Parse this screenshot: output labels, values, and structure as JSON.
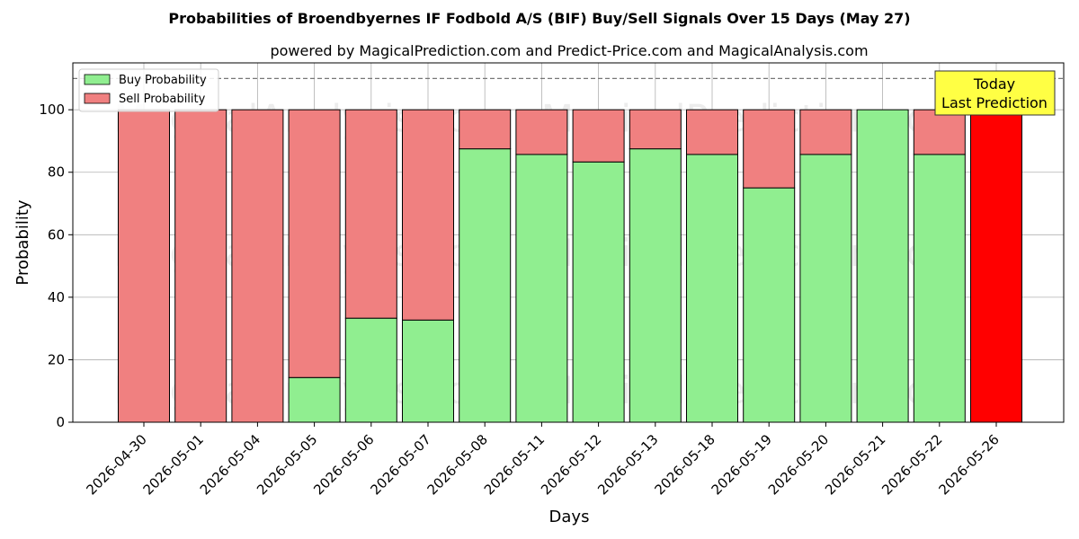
{
  "chart_data": {
    "type": "bar",
    "stacked": true,
    "title": "Probabilities of Broendbyernes IF Fodbold A/S (BIF) Buy/Sell Signals Over 15 Days (May 27)",
    "subtitle": "powered by MagicalPrediction.com and Predict-Price.com and MagicalAnalysis.com",
    "xlabel": "Days",
    "ylabel": "Probability",
    "ylim": [
      0,
      115
    ],
    "yticks": [
      0,
      20,
      40,
      60,
      80,
      100
    ],
    "threshold_line": 110,
    "grid": true,
    "legend_position": "top-left",
    "categories": [
      "2026-04-30",
      "2026-05-01",
      "2026-05-04",
      "2026-05-05",
      "2026-05-06",
      "2026-05-07",
      "2026-05-08",
      "2026-05-11",
      "2026-05-12",
      "2026-05-13",
      "2026-05-18",
      "2026-05-19",
      "2026-05-20",
      "2026-05-21",
      "2026-05-22",
      "2026-05-26"
    ],
    "series": [
      {
        "name": "Buy Probability",
        "color": "#90ee90",
        "values": [
          0,
          0,
          0,
          14.3,
          33.3,
          32.7,
          87.5,
          85.7,
          83.3,
          87.5,
          85.7,
          75.0,
          85.7,
          100,
          85.7,
          0
        ]
      },
      {
        "name": "Sell Probability",
        "color": "#f08080",
        "values": [
          100,
          100,
          100,
          85.7,
          66.7,
          67.3,
          12.5,
          14.3,
          16.7,
          12.5,
          14.3,
          25.0,
          14.3,
          0,
          14.3,
          100
        ]
      }
    ],
    "highlight": {
      "category": "2026-05-26",
      "color": "#ff0000"
    },
    "annotation": {
      "lines": [
        "Today",
        "Last Prediction"
      ],
      "background": "#ffff44"
    },
    "watermarks": [
      "MagicalAnalysis.com",
      "MagicalPrediction.com"
    ]
  }
}
